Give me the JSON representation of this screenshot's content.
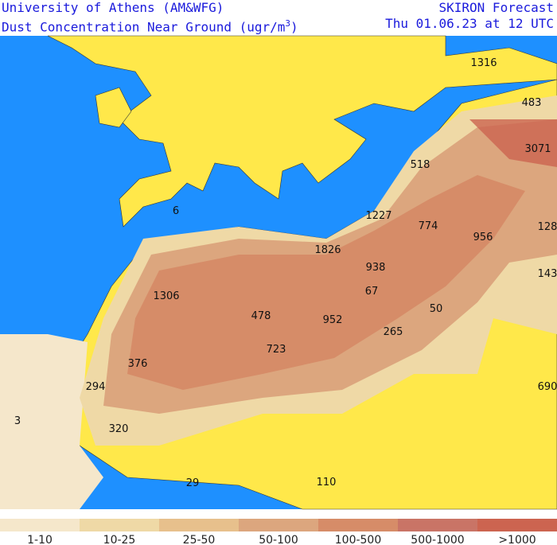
{
  "header": {
    "left": [
      "University of Athens (AM&WFG)",
      "Dust Concentration Near Ground (ugr/m"
    ],
    "left_exponent": "3",
    "left_close": ")",
    "right": [
      "SKIRON Forecast",
      "Thu 01.06.23 at 12 UTC"
    ]
  },
  "map": {
    "labels": [
      1316,
      483,
      3071,
      518,
      1227,
      774,
      956,
      128,
      1826,
      938,
      67,
      143,
      1306,
      478,
      952,
      50,
      265,
      723,
      376,
      294,
      690,
      320,
      3,
      6,
      29,
      110
    ]
  },
  "legend": {
    "classes": [
      {
        "label": "1-10",
        "color": "#f5e7cb"
      },
      {
        "label": "10-25",
        "color": "#efd9a6"
      },
      {
        "label": "25-50",
        "color": "#e7c08c"
      },
      {
        "label": "50-100",
        "color": "#dca67e"
      },
      {
        "label": "100-500",
        "color": "#d68c68"
      },
      {
        "label": "500-1000",
        "color": "#c97466"
      },
      {
        "label": ">1000",
        "color": "#cc6450"
      }
    ]
  }
}
